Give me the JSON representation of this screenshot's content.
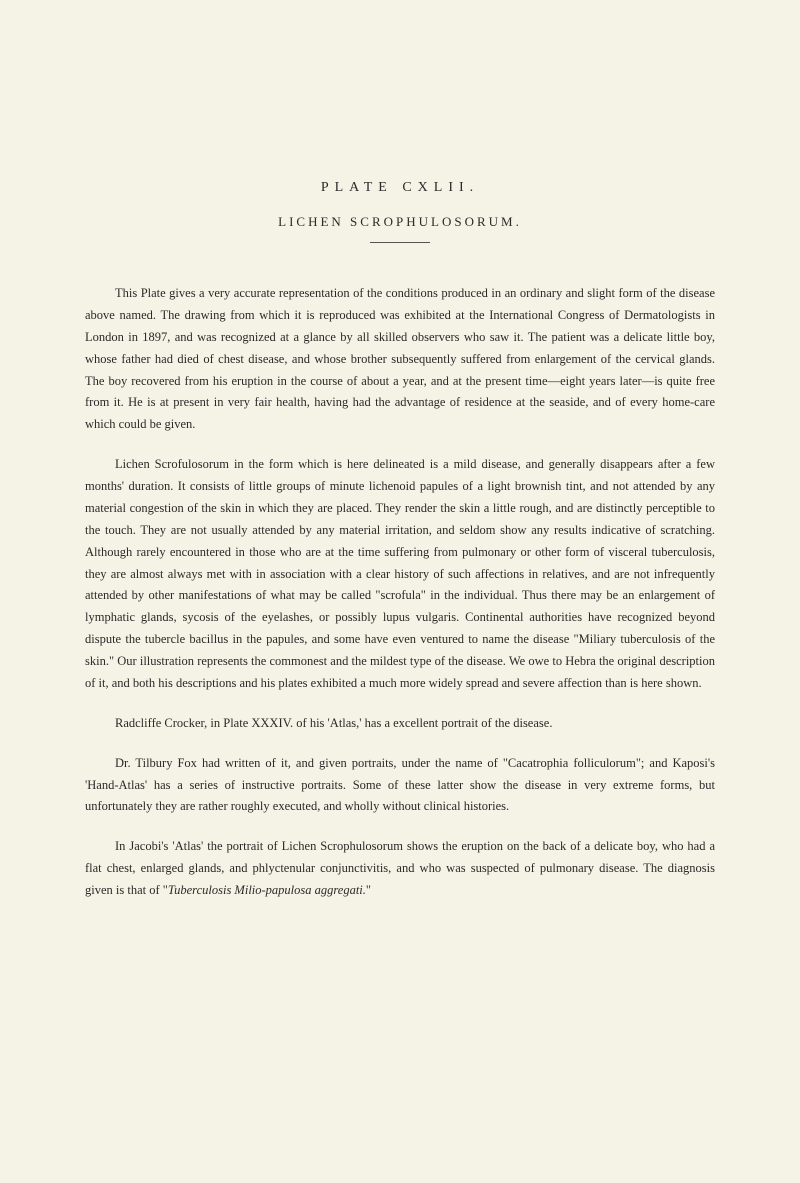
{
  "plate": {
    "title": "PLATE CXLII.",
    "subtitle": "LICHEN SCROPHULOSORUM."
  },
  "paragraphs": {
    "p1": "This Plate gives a very accurate representation of the conditions produced in an ordinary and slight form of the disease above named. The drawing from which it is reproduced was exhibited at the International Congress of Dermatologists in London in 1897, and was recognized at a glance by all skilled observers who saw it. The patient was a delicate little boy, whose father had died of chest disease, and whose brother subsequently suffered from enlargement of the cervical glands. The boy recovered from his eruption in the course of about a year, and at the present time—eight years later—is quite free from it. He is at present in very fair health, having had the advantage of residence at the seaside, and of every home-care which could be given.",
    "p2": "Lichen Scrofulosorum in the form which is here delineated is a mild disease, and generally disappears after a few months' duration. It consists of little groups of minute lichenoid papules of a light brownish tint, and not attended by any material congestion of the skin in which they are placed. They render the skin a little rough, and are distinctly perceptible to the touch. They are not usually attended by any material irritation, and seldom show any results indicative of scratching. Although rarely encountered in those who are at the time suffering from pulmonary or other form of visceral tuberculosis, they are almost always met with in association with a clear history of such affections in relatives, and are not infrequently attended by other manifestations of what may be called \"scrofula\" in the individual. Thus there may be an enlargement of lymphatic glands, sycosis of the eyelashes, or possibly lupus vulgaris. Continental authorities have recognized beyond dispute the tubercle bacillus in the papules, and some have even ventured to name the disease \"Miliary tuberculosis of the skin.\" Our illustration represents the commonest and the mildest type of the disease. We owe to Hebra the original description of it, and both his descriptions and his plates exhibited a much more widely spread and severe affection than is here shown.",
    "p3_part1": "Radcliffe Crocker, in Plate XXXIV. of his 'Atlas,' has a excellent portrait of the disease.",
    "p4_part1": "Dr. Tilbury Fox had written of it, and given portraits, under the name of \"Cacatrophia folliculorum\"; and Kaposi's 'Hand-Atlas' has a series of instructive portraits. Some of these latter show the disease in very extreme forms, but unfortunately they are rather roughly executed, and wholly without clinical histories.",
    "p5_part1": "In Jacobi's 'Atlas' the portrait of Lichen Scrophulosorum shows the eruption on the back of a delicate boy, who had a flat chest, enlarged glands, and phlyctenular conjunctivitis, and who was suspected of pulmonary disease. The diagnosis given is that of \"",
    "p5_italic": "Tuberculosis Milio-papulosa aggregati.",
    "p5_part2": "\""
  }
}
